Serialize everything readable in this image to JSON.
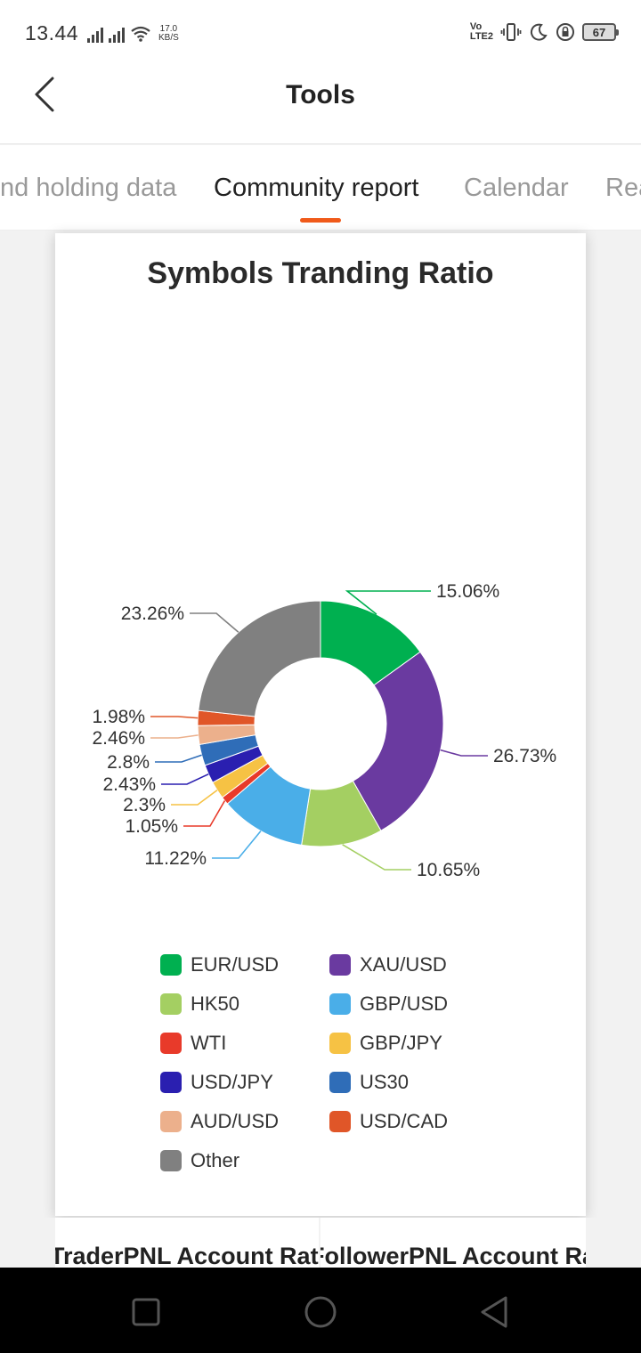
{
  "status_bar": {
    "time": "13.44",
    "speed_value": "17.0",
    "speed_unit": "KB/S",
    "volte_top": "Vo",
    "volte_bottom": "LTE2",
    "battery": "67"
  },
  "header": {
    "title": "Tools"
  },
  "tabs": [
    {
      "label": "Position holding data",
      "visible": "nd holding data"
    },
    {
      "label": "Community report",
      "active": true
    },
    {
      "label": "Calendar"
    },
    {
      "label": "Rea"
    }
  ],
  "card": {
    "title": "Symbols Tranding Ratio"
  },
  "chart_data": {
    "type": "pie",
    "title": "Symbols Tranding Ratio",
    "donut": true,
    "legend_position": "bottom",
    "slices": [
      {
        "name": "EUR/USD",
        "value": 15.06,
        "label": "15.06%",
        "color": "#00b050"
      },
      {
        "name": "XAU/USD",
        "value": 26.73,
        "label": "26.73%",
        "color": "#6a3aa0"
      },
      {
        "name": "HK50",
        "value": 10.65,
        "label": "10.65%",
        "color": "#a4cf62"
      },
      {
        "name": "GBP/USD",
        "value": 11.22,
        "label": "11.22%",
        "color": "#4aaee8"
      },
      {
        "name": "WTI",
        "value": 1.05,
        "label": "1.05%",
        "color": "#e83a2a"
      },
      {
        "name": "GBP/JPY",
        "value": 2.3,
        "label": "2.3%",
        "color": "#f6c244"
      },
      {
        "name": "USD/JPY",
        "value": 2.43,
        "label": "2.43%",
        "color": "#2a1fb0"
      },
      {
        "name": "US30",
        "value": 2.8,
        "label": "2.8%",
        "color": "#2f6db8"
      },
      {
        "name": "AUD/USD",
        "value": 2.46,
        "label": "2.46%",
        "color": "#ecb08c"
      },
      {
        "name": "USD/CAD",
        "value": 1.98,
        "label": "1.98%",
        "color": "#e05628"
      },
      {
        "name": "Other",
        "value": 23.26,
        "label": "23.26%",
        "color": "#808080"
      }
    ]
  },
  "bottom": {
    "left_title": "TraderPNL Account Ratio",
    "right_title": "FollowerPNL Account Ratio"
  }
}
